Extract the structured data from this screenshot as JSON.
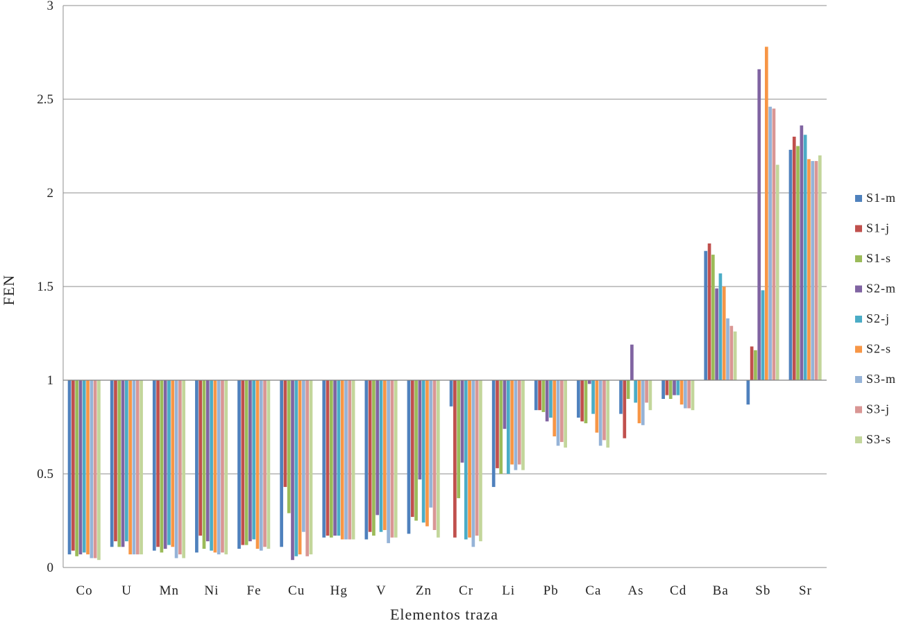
{
  "chart_data": {
    "type": "bar",
    "title": "",
    "xlabel": "Elementos  traza",
    "ylabel": "FEN",
    "ylim": [
      0,
      3
    ],
    "yticks": [
      "0",
      "0.5",
      "1",
      "1.5",
      "2",
      "2.5",
      "3"
    ],
    "baseline": 1,
    "grid": true,
    "legend_position": "right",
    "categories": [
      "Co",
      "U",
      "Mn",
      "Ni",
      "Fe",
      "Cu",
      "Hg",
      "V",
      "Zn",
      "Cr",
      "Li",
      "Pb",
      "Ca",
      "As",
      "Cd",
      "Ba",
      "Sb",
      "Sr"
    ],
    "series": [
      {
        "name": "S1-m",
        "color": "#4F81BD",
        "values": [
          0.07,
          0.11,
          0.09,
          0.08,
          0.1,
          0.11,
          0.16,
          0.15,
          0.18,
          0.86,
          0.43,
          0.84,
          0.8,
          0.82,
          0.9,
          1.69,
          0.87,
          2.23
        ]
      },
      {
        "name": "S1-j",
        "color": "#C0504D",
        "values": [
          0.09,
          0.14,
          0.11,
          0.17,
          0.12,
          0.43,
          0.17,
          0.19,
          0.27,
          0.16,
          0.53,
          0.84,
          0.78,
          0.69,
          0.92,
          1.73,
          1.18,
          2.3
        ]
      },
      {
        "name": "S1-s",
        "color": "#9BBB59",
        "values": [
          0.06,
          0.11,
          0.08,
          0.1,
          0.12,
          0.29,
          0.16,
          0.17,
          0.25,
          0.37,
          0.5,
          0.83,
          0.77,
          0.9,
          0.9,
          1.67,
          1.16,
          2.25
        ]
      },
      {
        "name": "S2-m",
        "color": "#8064A2",
        "values": [
          0.07,
          0.11,
          0.1,
          0.14,
          0.14,
          0.04,
          0.17,
          0.28,
          0.47,
          0.56,
          0.74,
          0.78,
          0.98,
          1.19,
          0.92,
          1.49,
          2.66,
          2.36
        ]
      },
      {
        "name": "S2-j",
        "color": "#4BACC6",
        "values": [
          0.08,
          0.14,
          0.12,
          0.09,
          0.15,
          0.06,
          0.17,
          0.19,
          0.24,
          0.15,
          0.5,
          0.8,
          0.82,
          0.88,
          0.92,
          1.57,
          1.48,
          2.31
        ]
      },
      {
        "name": "S2-s",
        "color": "#F79646",
        "values": [
          0.07,
          0.07,
          0.11,
          0.08,
          0.1,
          0.07,
          0.15,
          0.2,
          0.22,
          0.16,
          0.55,
          0.7,
          0.72,
          0.77,
          0.87,
          1.5,
          2.78,
          2.18
        ]
      },
      {
        "name": "S3-m",
        "color": "#95B3D7",
        "values": [
          0.05,
          0.07,
          0.05,
          0.07,
          0.09,
          0.19,
          0.15,
          0.13,
          0.32,
          0.11,
          0.52,
          0.65,
          0.65,
          0.76,
          0.85,
          1.33,
          2.46,
          2.17
        ]
      },
      {
        "name": "S3-j",
        "color": "#D99694",
        "values": [
          0.05,
          0.07,
          0.07,
          0.08,
          0.11,
          0.06,
          0.15,
          0.16,
          0.2,
          0.17,
          0.55,
          0.67,
          0.68,
          0.88,
          0.85,
          1.29,
          2.45,
          2.17
        ]
      },
      {
        "name": "S3-s",
        "color": "#C3D69B",
        "values": [
          0.04,
          0.07,
          0.05,
          0.07,
          0.1,
          0.07,
          0.15,
          0.16,
          0.16,
          0.14,
          0.52,
          0.64,
          0.64,
          0.84,
          0.84,
          1.26,
          2.15,
          2.2
        ]
      }
    ]
  }
}
